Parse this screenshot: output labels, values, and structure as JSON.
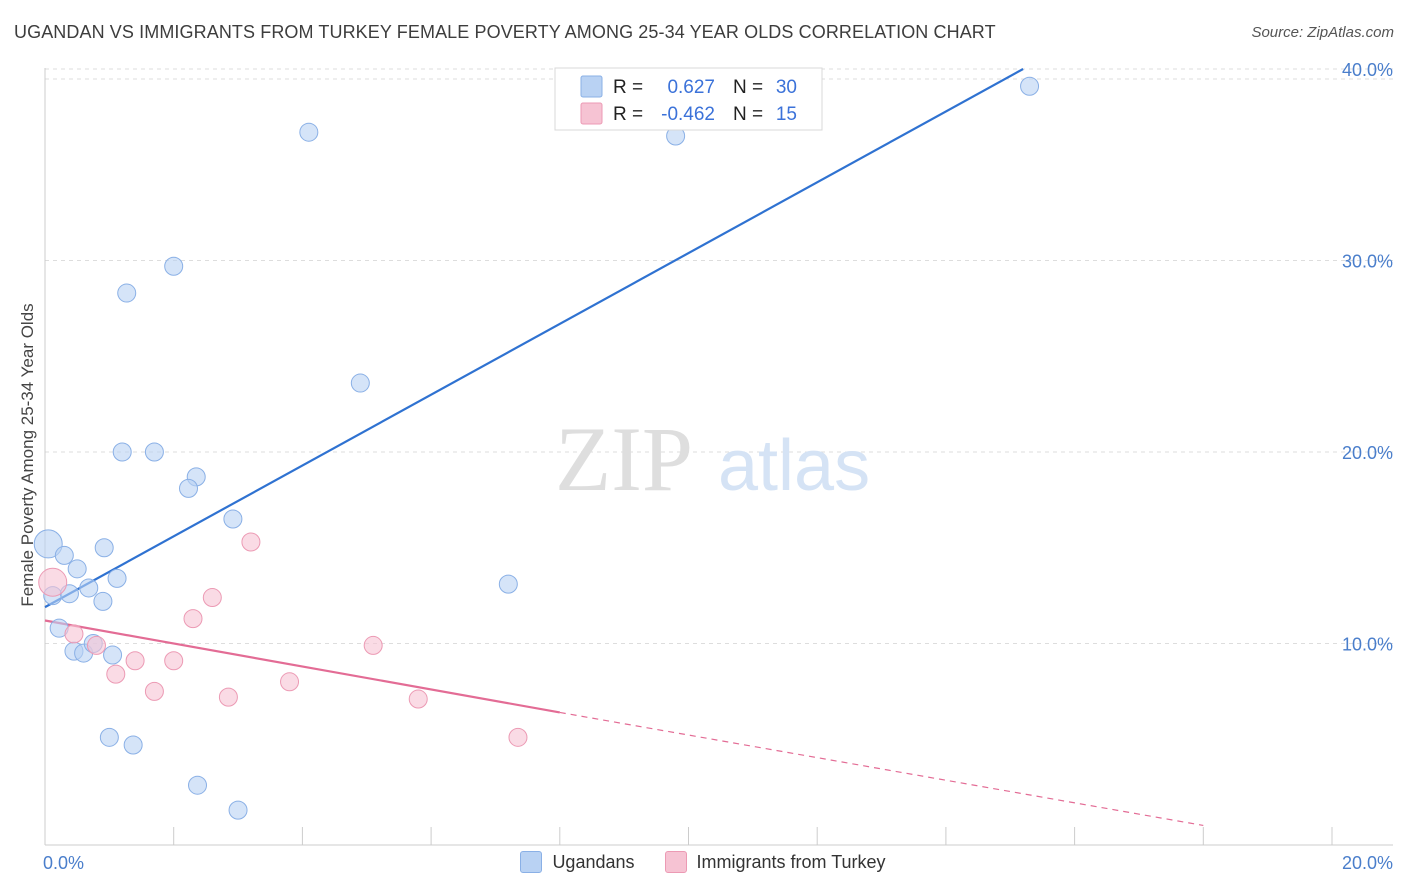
{
  "header": {
    "title": "UGANDAN VS IMMIGRANTS FROM TURKEY FEMALE POVERTY AMONG 25-34 YEAR OLDS CORRELATION CHART",
    "source": "Source: ZipAtlas.com"
  },
  "watermark": {
    "zip": "ZIP",
    "atlas": "atlas"
  },
  "legend": {
    "rows": [
      {
        "r_label": "R =",
        "r_value": "0.627",
        "n_label": "N =",
        "n_value": "30"
      },
      {
        "r_label": "R =",
        "r_value": "-0.462",
        "n_label": "N =",
        "n_value": "15"
      }
    ]
  },
  "bottom_legend": {
    "series0": "Ugandans",
    "series1": "Immigrants from Turkey"
  },
  "colors": {
    "blue_fill": "#b9d2f3",
    "blue_stroke": "#8ab0e6",
    "blue_line": "#2f72d1",
    "pink_fill": "#f6c3d3",
    "pink_stroke": "#ec9ab4",
    "pink_line": "#e36c95",
    "grid": "#dddddd",
    "axis_text": "#4a7ecb"
  },
  "chart_data": {
    "type": "scatter",
    "title": "UGANDAN VS IMMIGRANTS FROM TURKEY FEMALE POVERTY AMONG 25-34 YEAR OLDS CORRELATION CHART",
    "xlabel": "",
    "ylabel": "Female Poverty Among 25-34 Year Olds",
    "xlim": [
      0,
      20
    ],
    "ylim": [
      0,
      40
    ],
    "x_tick_labels": [
      "0.0%",
      "20.0%"
    ],
    "y_ticks": [
      10,
      20,
      30,
      40
    ],
    "y_tick_labels": [
      "10.0%",
      "20.0%",
      "30.0%",
      "40.0%"
    ],
    "series": [
      {
        "name": "Ugandans",
        "r": 0.627,
        "n": 30,
        "points": [
          [
            0.05,
            15.2,
            14
          ],
          [
            0.12,
            12.5,
            9
          ],
          [
            0.3,
            14.6,
            9
          ],
          [
            0.5,
            13.9,
            9
          ],
          [
            0.38,
            12.6,
            9
          ],
          [
            0.22,
            10.8,
            9
          ],
          [
            0.45,
            9.6,
            9
          ],
          [
            0.6,
            9.5,
            9
          ],
          [
            0.75,
            10.0,
            9
          ],
          [
            1.05,
            9.4,
            9
          ],
          [
            0.9,
            12.2,
            9
          ],
          [
            0.68,
            12.9,
            9
          ],
          [
            1.12,
            13.4,
            9
          ],
          [
            0.92,
            15.0,
            9
          ],
          [
            1.2,
            20.0,
            9
          ],
          [
            1.7,
            20.0,
            9
          ],
          [
            2.35,
            18.7,
            9
          ],
          [
            2.23,
            18.1,
            9
          ],
          [
            2.92,
            16.5,
            9
          ],
          [
            1.27,
            28.3,
            9
          ],
          [
            2.0,
            29.7,
            9
          ],
          [
            4.1,
            36.7,
            9
          ],
          [
            4.9,
            23.6,
            9
          ],
          [
            7.2,
            13.1,
            9
          ],
          [
            9.8,
            36.5,
            9
          ],
          [
            15.3,
            39.1,
            9
          ],
          [
            1.0,
            5.1,
            9
          ],
          [
            1.37,
            4.7,
            9
          ],
          [
            2.37,
            2.6,
            9
          ],
          [
            3.0,
            1.3,
            9
          ]
        ]
      },
      {
        "name": "Immigrants from Turkey",
        "r": -0.462,
        "n": 15,
        "points": [
          [
            0.12,
            13.2,
            14
          ],
          [
            0.45,
            10.5,
            9
          ],
          [
            0.8,
            9.9,
            9
          ],
          [
            1.1,
            8.4,
            9
          ],
          [
            1.4,
            9.1,
            9
          ],
          [
            1.7,
            7.5,
            9
          ],
          [
            2.0,
            9.1,
            9
          ],
          [
            2.3,
            11.3,
            9
          ],
          [
            2.6,
            12.4,
            9
          ],
          [
            2.85,
            7.2,
            9
          ],
          [
            3.2,
            15.3,
            9
          ],
          [
            3.8,
            8.0,
            9
          ],
          [
            5.1,
            9.9,
            9
          ],
          [
            5.8,
            7.1,
            9
          ],
          [
            7.35,
            5.1,
            9
          ]
        ]
      }
    ],
    "trend_lines": [
      {
        "series": "Ugandans",
        "x1": 0.0,
        "y1": 11.9,
        "x2": 15.2,
        "y2": 40.0,
        "dashed_to": null
      },
      {
        "series": "Immigrants from Turkey",
        "x1": 0.0,
        "y1": 11.2,
        "x2": 8.0,
        "y2": 6.4,
        "dashed_to": [
          18.0,
          0.5
        ]
      }
    ]
  }
}
